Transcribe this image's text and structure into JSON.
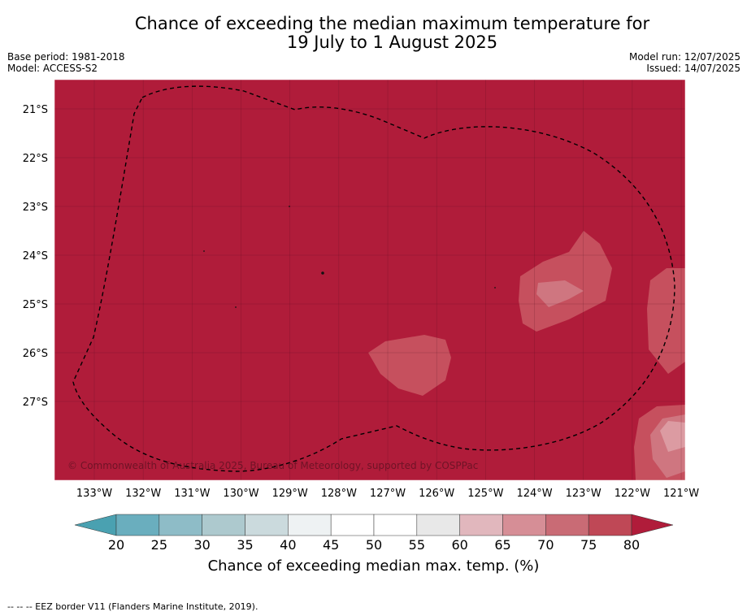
{
  "title": {
    "line1": "Chance of exceeding the median maximum temperature for",
    "line2": "19 July to 1 August 2025"
  },
  "meta": {
    "base_period": "Base period: 1981-2018",
    "model": "Model: ACCESS-S2",
    "model_run": "Model run: 12/07/2025",
    "issued": "Issued: 14/07/2025"
  },
  "map": {
    "lon_labels": [
      "133°W",
      "132°W",
      "131°W",
      "130°W",
      "129°W",
      "128°W",
      "127°W",
      "126°W",
      "125°W",
      "124°W",
      "123°W",
      "122°W",
      "121°W"
    ],
    "lat_labels": [
      "21°S",
      "22°S",
      "23°S",
      "24°S",
      "25°S",
      "26°S",
      "27°S"
    ],
    "copyright": "© Commonwealth of Australia 2025, Bureau of Meteorology, supported by COSPPac",
    "background_color": "#b01c3a",
    "boundary_style": "dashed"
  },
  "colorbar": {
    "ticks": [
      "20",
      "25",
      "30",
      "35",
      "40",
      "45",
      "50",
      "55",
      "60",
      "65",
      "70",
      "75",
      "80"
    ],
    "colors": [
      "#6aaebe",
      "#8ebcc7",
      "#adc9ce",
      "#cbdadd",
      "#eef2f3",
      "#ffffff",
      "#ffffff",
      "#e8e8e8",
      "#e1b7bd",
      "#d68e96",
      "#c96b75",
      "#bf4856"
    ],
    "under_color": "#4aa1b1",
    "over_color": "#b01c3a",
    "label": "Chance of exceeding median max. temp. (%)"
  },
  "footnote": "--  --  -- EEZ border V11 (Flanders Marine Institute, 2019)."
}
